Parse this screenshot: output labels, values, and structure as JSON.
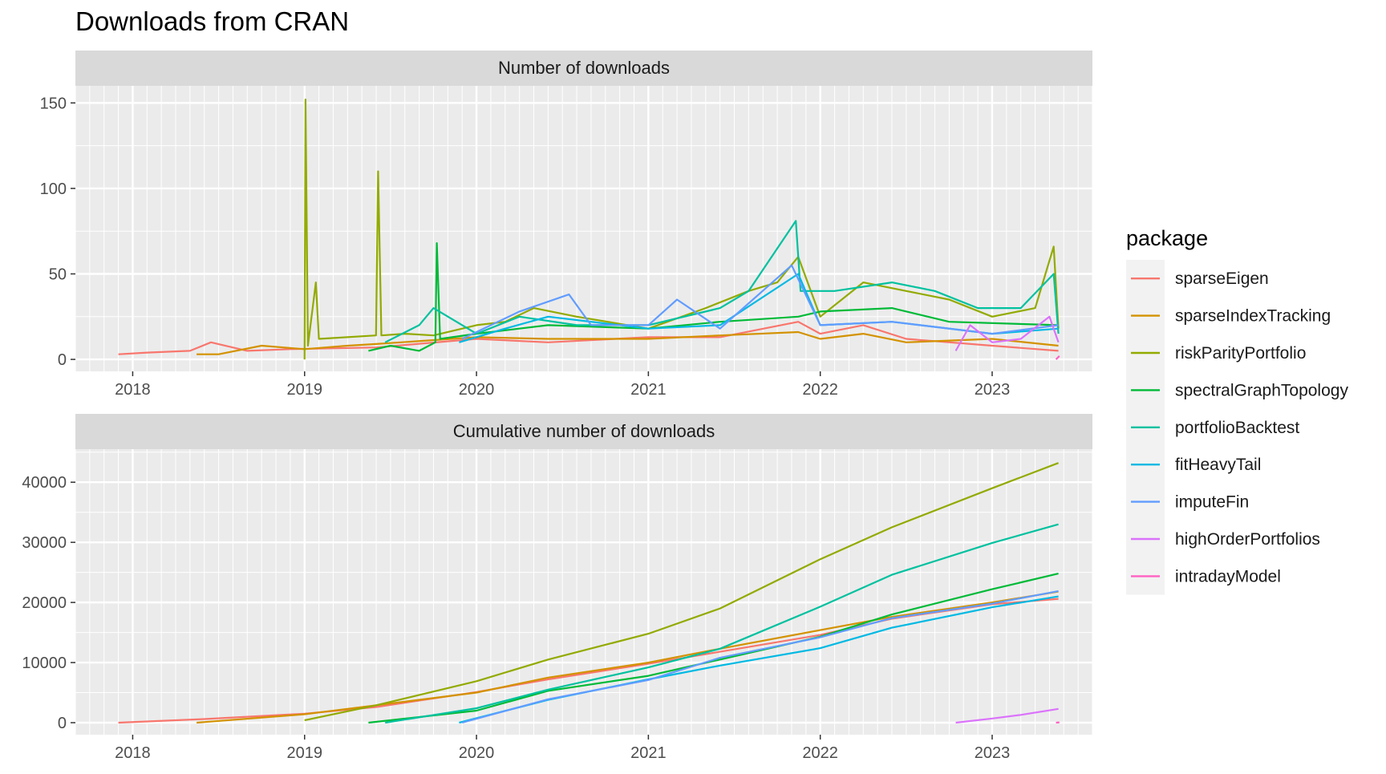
{
  "title": "Downloads from CRAN",
  "legend": {
    "title": "package",
    "placement": "right"
  },
  "colors": {
    "sparseEigen": "#F8766D",
    "sparseIndexTracking": "#D39200",
    "riskParityPortfolio": "#93AA00",
    "spectralGraphTopology": "#00BA38",
    "portfolioBacktest": "#00C19F",
    "fitHeavyTail": "#00B9E3",
    "imputeFin": "#619CFF",
    "highOrderPortfolios": "#DB72FB",
    "intradayModel": "#FF61C3",
    "panel_background": "#EBEBEB",
    "strip_background": "#D9D9D9",
    "grid": "#FFFFFF"
  },
  "chart_data": [
    {
      "type": "line",
      "panel": "Number of downloads",
      "xlabel": "",
      "ylabel": "",
      "x_ticks": [
        "2018",
        "2019",
        "2020",
        "2021",
        "2022",
        "2023"
      ],
      "y_ticks": [
        "0",
        "50",
        "100",
        "150"
      ],
      "xlim": [
        "2017-09",
        "2023-08"
      ],
      "ylim": [
        -7,
        160
      ],
      "grid": true,
      "series": [
        {
          "name": "sparseEigen",
          "points": [
            [
              "2017-12-01",
              3
            ],
            [
              "2018-02-01",
              4
            ],
            [
              "2018-05-01",
              5
            ],
            [
              "2018-06-15",
              10
            ],
            [
              "2018-09-01",
              5
            ],
            [
              "2018-12-01",
              6
            ],
            [
              "2019-06-01",
              7
            ],
            [
              "2020-01-01",
              12
            ],
            [
              "2020-06-01",
              10
            ],
            [
              "2021-01-01",
              13
            ],
            [
              "2021-06-01",
              13
            ],
            [
              "2021-11-15",
              22
            ],
            [
              "2022-01-01",
              15
            ],
            [
              "2022-04-01",
              20
            ],
            [
              "2022-07-01",
              12
            ],
            [
              "2023-01-01",
              8
            ],
            [
              "2023-05-20",
              5
            ]
          ]
        },
        {
          "name": "sparseIndexTracking",
          "points": [
            [
              "2018-05-15",
              3
            ],
            [
              "2018-07-01",
              3
            ],
            [
              "2018-10-01",
              8
            ],
            [
              "2019-01-01",
              6
            ],
            [
              "2019-04-01",
              8
            ],
            [
              "2019-06-01",
              9
            ],
            [
              "2020-01-01",
              13
            ],
            [
              "2020-06-01",
              12
            ],
            [
              "2021-01-01",
              12
            ],
            [
              "2021-06-01",
              14
            ],
            [
              "2021-11-15",
              16
            ],
            [
              "2022-01-01",
              12
            ],
            [
              "2022-04-01",
              15
            ],
            [
              "2022-07-01",
              10
            ],
            [
              "2023-01-01",
              12
            ],
            [
              "2023-05-20",
              8
            ]
          ]
        },
        {
          "name": "riskParityPortfolio",
          "points": [
            [
              "2019-01-01",
              0
            ],
            [
              "2019-01-03",
              152
            ],
            [
              "2019-01-08",
              8
            ],
            [
              "2019-01-25",
              45
            ],
            [
              "2019-02-01",
              12
            ],
            [
              "2019-05-31",
              14
            ],
            [
              "2019-06-05",
              110
            ],
            [
              "2019-06-12",
              14
            ],
            [
              "2019-08-01",
              15
            ],
            [
              "2019-10-01",
              14
            ],
            [
              "2020-01-01",
              20
            ],
            [
              "2020-03-01",
              22
            ],
            [
              "2020-05-01",
              30
            ],
            [
              "2020-08-01",
              25
            ],
            [
              "2021-01-01",
              18
            ],
            [
              "2021-05-01",
              30
            ],
            [
              "2021-08-01",
              40
            ],
            [
              "2021-10-01",
              45
            ],
            [
              "2021-11-15",
              60
            ],
            [
              "2022-01-01",
              25
            ],
            [
              "2022-04-01",
              45
            ],
            [
              "2022-07-01",
              40
            ],
            [
              "2022-10-01",
              35
            ],
            [
              "2023-01-01",
              25
            ],
            [
              "2023-04-01",
              30
            ],
            [
              "2023-05-10",
              66
            ],
            [
              "2023-05-20",
              18
            ]
          ]
        },
        {
          "name": "spectralGraphTopology",
          "points": [
            [
              "2019-05-15",
              5
            ],
            [
              "2019-07-01",
              8
            ],
            [
              "2019-09-01",
              5
            ],
            [
              "2019-10-05",
              10
            ],
            [
              "2019-10-08",
              68
            ],
            [
              "2019-10-15",
              12
            ],
            [
              "2020-01-01",
              15
            ],
            [
              "2020-06-01",
              20
            ],
            [
              "2021-01-01",
              18
            ],
            [
              "2021-06-01",
              22
            ],
            [
              "2021-11-15",
              25
            ],
            [
              "2022-01-01",
              28
            ],
            [
              "2022-06-01",
              30
            ],
            [
              "2022-10-01",
              22
            ],
            [
              "2023-05-20",
              20
            ]
          ]
        },
        {
          "name": "portfolioBacktest",
          "points": [
            [
              "2019-06-20",
              10
            ],
            [
              "2019-09-01",
              20
            ],
            [
              "2019-10-01",
              30
            ],
            [
              "2020-01-01",
              15
            ],
            [
              "2020-04-01",
              25
            ],
            [
              "2020-08-01",
              20
            ],
            [
              "2021-01-01",
              20
            ],
            [
              "2021-06-01",
              30
            ],
            [
              "2021-08-01",
              40
            ],
            [
              "2021-11-10",
              81
            ],
            [
              "2021-11-20",
              40
            ],
            [
              "2022-02-01",
              40
            ],
            [
              "2022-06-01",
              45
            ],
            [
              "2022-09-01",
              40
            ],
            [
              "2022-12-01",
              30
            ],
            [
              "2023-03-01",
              30
            ],
            [
              "2023-05-10",
              50
            ],
            [
              "2023-05-20",
              15
            ]
          ]
        },
        {
          "name": "fitHeavyTail",
          "points": [
            [
              "2019-11-25",
              10
            ],
            [
              "2020-03-01",
              18
            ],
            [
              "2020-06-01",
              25
            ],
            [
              "2021-01-01",
              18
            ],
            [
              "2021-06-01",
              20
            ],
            [
              "2021-11-15",
              50
            ],
            [
              "2022-01-01",
              20
            ],
            [
              "2022-06-01",
              22
            ],
            [
              "2023-01-01",
              15
            ],
            [
              "2023-05-20",
              18
            ]
          ]
        },
        {
          "name": "imputeFin",
          "points": [
            [
              "2019-12-01",
              12
            ],
            [
              "2020-04-01",
              28
            ],
            [
              "2020-07-15",
              38
            ],
            [
              "2020-09-01",
              20
            ],
            [
              "2021-01-01",
              20
            ],
            [
              "2021-03-01",
              35
            ],
            [
              "2021-06-01",
              18
            ],
            [
              "2021-11-01",
              55
            ],
            [
              "2022-01-01",
              20
            ],
            [
              "2022-06-01",
              22
            ],
            [
              "2023-01-01",
              15
            ],
            [
              "2023-05-20",
              20
            ]
          ]
        },
        {
          "name": "highOrderPortfolios",
          "points": [
            [
              "2022-10-15",
              5
            ],
            [
              "2022-11-15",
              20
            ],
            [
              "2023-01-01",
              10
            ],
            [
              "2023-03-01",
              12
            ],
            [
              "2023-05-01",
              25
            ],
            [
              "2023-05-20",
              10
            ]
          ]
        },
        {
          "name": "intradayModel",
          "points": [
            [
              "2023-05-15",
              0
            ],
            [
              "2023-05-22",
              2
            ]
          ]
        }
      ]
    },
    {
      "type": "line",
      "panel": "Cumulative number of downloads",
      "xlabel": "",
      "ylabel": "",
      "x_ticks": [
        "2018",
        "2019",
        "2020",
        "2021",
        "2022",
        "2023"
      ],
      "y_ticks": [
        "0",
        "10000",
        "20000",
        "30000",
        "40000"
      ],
      "xlim": [
        "2017-09",
        "2023-08"
      ],
      "ylim": [
        -2000,
        45500
      ],
      "grid": true,
      "series": [
        {
          "name": "sparseEigen",
          "points": [
            [
              "2017-12-01",
              0
            ],
            [
              "2018-06-01",
              600
            ],
            [
              "2019-01-01",
              1500
            ],
            [
              "2019-06-01",
              2600
            ],
            [
              "2020-01-01",
              5100
            ],
            [
              "2020-06-01",
              7200
            ],
            [
              "2021-01-01",
              9800
            ],
            [
              "2021-06-01",
              11800
            ],
            [
              "2022-01-01",
              14600
            ],
            [
              "2022-06-01",
              17300
            ],
            [
              "2023-01-01",
              19700
            ],
            [
              "2023-05-20",
              20600
            ]
          ]
        },
        {
          "name": "sparseIndexTracking",
          "points": [
            [
              "2018-05-15",
              0
            ],
            [
              "2019-01-01",
              1400
            ],
            [
              "2019-06-01",
              2900
            ],
            [
              "2020-01-01",
              5000
            ],
            [
              "2020-06-01",
              7500
            ],
            [
              "2021-01-01",
              10000
            ],
            [
              "2021-06-01",
              12300
            ],
            [
              "2022-01-01",
              15400
            ],
            [
              "2022-06-01",
              17600
            ],
            [
              "2023-01-01",
              20000
            ],
            [
              "2023-05-20",
              21800
            ]
          ]
        },
        {
          "name": "riskParityPortfolio",
          "points": [
            [
              "2019-01-01",
              400
            ],
            [
              "2019-06-01",
              2900
            ],
            [
              "2020-01-01",
              6900
            ],
            [
              "2020-06-01",
              10500
            ],
            [
              "2021-01-01",
              14800
            ],
            [
              "2021-06-01",
              19000
            ],
            [
              "2022-01-01",
              27200
            ],
            [
              "2022-06-01",
              32500
            ],
            [
              "2023-01-01",
              39000
            ],
            [
              "2023-05-20",
              43200
            ]
          ]
        },
        {
          "name": "spectralGraphTopology",
          "points": [
            [
              "2019-05-15",
              0
            ],
            [
              "2020-01-01",
              2000
            ],
            [
              "2020-06-01",
              5300
            ],
            [
              "2021-01-01",
              7800
            ],
            [
              "2021-06-01",
              10500
            ],
            [
              "2022-01-01",
              14300
            ],
            [
              "2022-06-01",
              18000
            ],
            [
              "2023-01-01",
              22200
            ],
            [
              "2023-05-20",
              24800
            ]
          ]
        },
        {
          "name": "portfolioBacktest",
          "points": [
            [
              "2019-06-20",
              0
            ],
            [
              "2020-01-01",
              2400
            ],
            [
              "2020-06-01",
              5500
            ],
            [
              "2021-01-01",
              9200
            ],
            [
              "2021-06-01",
              12300
            ],
            [
              "2022-01-01",
              19300
            ],
            [
              "2022-06-01",
              24600
            ],
            [
              "2023-01-01",
              29900
            ],
            [
              "2023-05-20",
              33000
            ]
          ]
        },
        {
          "name": "fitHeavyTail",
          "points": [
            [
              "2019-11-25",
              0
            ],
            [
              "2020-06-01",
              3800
            ],
            [
              "2021-01-01",
              7200
            ],
            [
              "2021-06-01",
              9500
            ],
            [
              "2022-01-01",
              12400
            ],
            [
              "2022-06-01",
              15800
            ],
            [
              "2023-01-01",
              19200
            ],
            [
              "2023-05-20",
              21000
            ]
          ]
        },
        {
          "name": "imputeFin",
          "points": [
            [
              "2019-12-01",
              0
            ],
            [
              "2020-06-01",
              3900
            ],
            [
              "2021-01-01",
              7100
            ],
            [
              "2021-06-01",
              10800
            ],
            [
              "2022-01-01",
              14200
            ],
            [
              "2022-06-01",
              17400
            ],
            [
              "2023-01-01",
              19800
            ],
            [
              "2023-05-20",
              21900
            ]
          ]
        },
        {
          "name": "highOrderPortfolios",
          "points": [
            [
              "2022-10-15",
              0
            ],
            [
              "2023-01-01",
              700
            ],
            [
              "2023-03-01",
              1300
            ],
            [
              "2023-05-20",
              2300
            ]
          ]
        },
        {
          "name": "intradayModel",
          "points": [
            [
              "2023-05-15",
              0
            ],
            [
              "2023-05-22",
              50
            ]
          ]
        }
      ]
    }
  ]
}
